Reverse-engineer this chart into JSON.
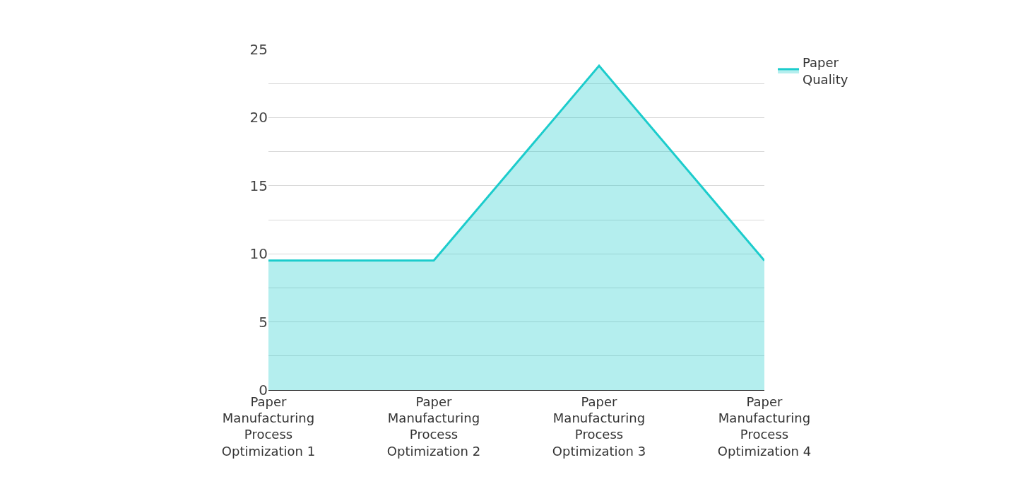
{
  "chart_data": {
    "type": "area",
    "categories": [
      "Paper Manufacturing Process Optimization 1",
      "Paper Manufacturing Process Optimization 2",
      "Paper Manufacturing Process Optimization 3",
      "Paper Manufacturing Process Optimization 4"
    ],
    "series": [
      {
        "name": "Paper Quality",
        "color": "#1ccccc",
        "values": [
          9.5,
          9.5,
          23.8,
          9.5
        ]
      }
    ],
    "ylim": [
      0,
      25
    ],
    "yticks": [
      0,
      {
        "value": 2.5,
        "label": null
      },
      5,
      {
        "value": 7.5,
        "label": null
      },
      10,
      {
        "value": 12.5,
        "label": null
      },
      15,
      {
        "value": 17.5,
        "label": null
      },
      20,
      {
        "value": 22.5,
        "label": null
      },
      25
    ],
    "grid": "y",
    "legend": "top right"
  }
}
